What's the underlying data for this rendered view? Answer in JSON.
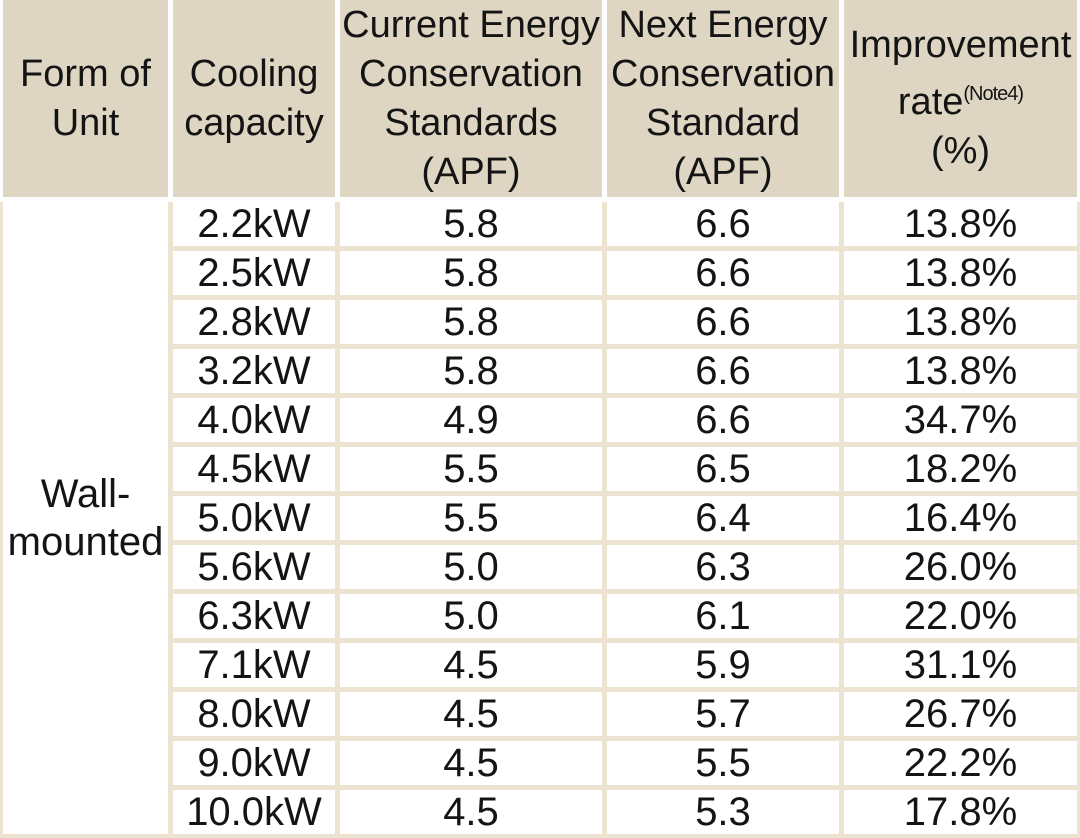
{
  "table": {
    "header": {
      "form_of_unit": "Form of\nUnit",
      "cooling_capacity": "Cooling\ncapacity",
      "current_standard": "Current Energy\nConservation\nStandards\n(APF)",
      "next_standard": "Next Energy\nConservation\nStandard\n(APF)",
      "improvement_title": "Improvement",
      "improvement_rate_word": "rate",
      "improvement_note": "(Note4)",
      "improvement_unit": "(%)"
    },
    "row_group_label": "Wall-mounted",
    "rows": [
      {
        "capacity": "2.2kW",
        "current_apf": "5.8",
        "next_apf": "6.6",
        "improvement": "13.8%"
      },
      {
        "capacity": "2.5kW",
        "current_apf": "5.8",
        "next_apf": "6.6",
        "improvement": "13.8%"
      },
      {
        "capacity": "2.8kW",
        "current_apf": "5.8",
        "next_apf": "6.6",
        "improvement": "13.8%"
      },
      {
        "capacity": "3.2kW",
        "current_apf": "5.8",
        "next_apf": "6.6",
        "improvement": "13.8%"
      },
      {
        "capacity": "4.0kW",
        "current_apf": "4.9",
        "next_apf": "6.6",
        "improvement": "34.7%"
      },
      {
        "capacity": "4.5kW",
        "current_apf": "5.5",
        "next_apf": "6.5",
        "improvement": "18.2%"
      },
      {
        "capacity": "5.0kW",
        "current_apf": "5.5",
        "next_apf": "6.4",
        "improvement": "16.4%"
      },
      {
        "capacity": "5.6kW",
        "current_apf": "5.0",
        "next_apf": "6.3",
        "improvement": "26.0%"
      },
      {
        "capacity": "6.3kW",
        "current_apf": "5.0",
        "next_apf": "6.1",
        "improvement": "22.0%"
      },
      {
        "capacity": "7.1kW",
        "current_apf": "4.5",
        "next_apf": "5.9",
        "improvement": "31.1%"
      },
      {
        "capacity": "8.0kW",
        "current_apf": "4.5",
        "next_apf": "5.7",
        "improvement": "26.7%"
      },
      {
        "capacity": "9.0kW",
        "current_apf": "4.5",
        "next_apf": "5.5",
        "improvement": "22.2%"
      },
      {
        "capacity": "10.0kW",
        "current_apf": "4.5",
        "next_apf": "5.3",
        "improvement": "17.8%"
      }
    ],
    "colors": {
      "header_bg": "#ded6c2",
      "grid_line": "#ece4d1",
      "cell_bg": "#ffffff",
      "text": "#141414"
    }
  }
}
